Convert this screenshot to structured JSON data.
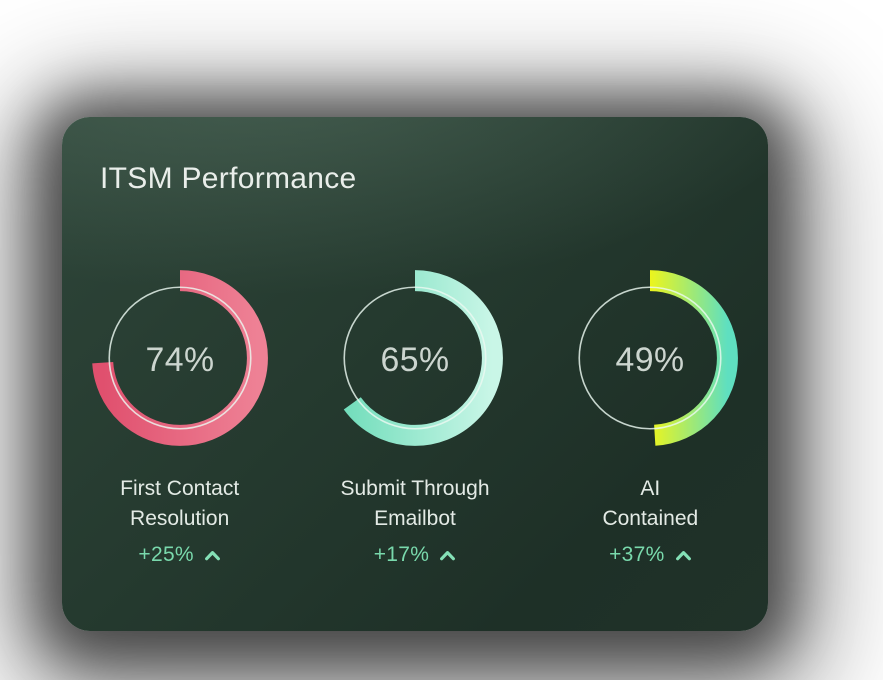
{
  "card": {
    "title": "ITSM Performance"
  },
  "colors": {
    "card_bg_start": "#2e4539",
    "card_bg_end": "#1e3027",
    "title_text": "#e9eeea",
    "value_text": "#ccd5cf",
    "label_text": "#e3eae5",
    "delta_text": "#79d9ac",
    "delta_icon": "#84e0b6",
    "ring_track": "#ebf9f2"
  },
  "chart_data": {
    "type": "donut",
    "title": "ITSM Performance",
    "legend_position": "none",
    "arc_start_deg": 0,
    "arc_direction": "clockwise",
    "metrics": [
      {
        "value_display": "74%",
        "percent": 74,
        "label_lines": [
          "First Contact",
          "Resolution"
        ],
        "delta": "+25%",
        "trend": "up",
        "arc_gradient": [
          "#e0506e",
          "#ee8195"
        ]
      },
      {
        "value_display": "65%",
        "percent": 65,
        "label_lines": [
          "Submit Through",
          "Emailbot"
        ],
        "delta": "+17%",
        "trend": "up",
        "arc_gradient": [
          "#6edcb9",
          "#c9f6e7"
        ]
      },
      {
        "value_display": "49%",
        "percent": 49,
        "label_lines": [
          "AI",
          "Contained"
        ],
        "delta": "+37%",
        "trend": "up",
        "arc_gradient": [
          "#bfe54a",
          "#edf51c",
          "#5fdfc0"
        ]
      }
    ]
  }
}
